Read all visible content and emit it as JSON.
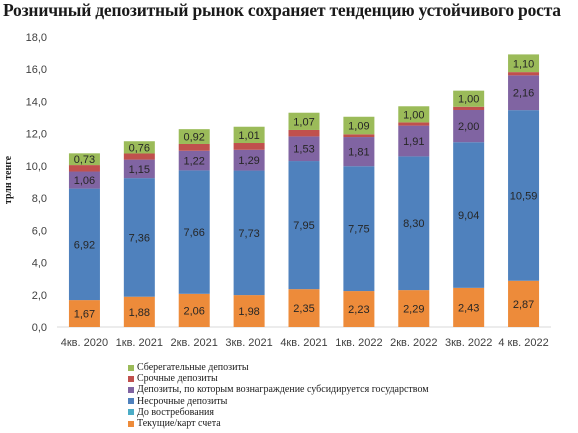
{
  "chart_data": {
    "type": "bar",
    "stacked": true,
    "title": "Розничный депозитный рынок сохраняет тенденцию устойчивого роста",
    "ylabel": "трлн тенге",
    "xlabel": "",
    "ylim": [
      0,
      18
    ],
    "yticks": [
      "0,0",
      "2,0",
      "4,0",
      "6,0",
      "8,0",
      "10,0",
      "12,0",
      "14,0",
      "16,0",
      "18,0"
    ],
    "grid": false,
    "legend_position": "bottom",
    "categories": [
      "4кв. 2020",
      "1кв. 2021",
      "2кв. 2021",
      "3кв. 2021",
      "4кв. 2021",
      "1кв. 2022",
      "2кв. 2022",
      "3кв. 2022",
      "4 кв. 2022"
    ],
    "series": [
      {
        "name": "Текущие/карт счета",
        "color": "#ed8b3a",
        "values": [
          1.67,
          1.88,
          2.06,
          1.98,
          2.35,
          2.23,
          2.29,
          2.43,
          2.87
        ],
        "labels": [
          "1,67",
          "1,88",
          "2,06",
          "1,98",
          "2,35",
          "2,23",
          "2,29",
          "2,43",
          "2,87"
        ]
      },
      {
        "name": "До востребования",
        "color": "#4bacc6",
        "values": [
          0,
          0,
          0,
          0,
          0,
          0,
          0,
          0,
          0
        ],
        "labels": []
      },
      {
        "name": "Несрочные депозиты",
        "color": "#4f81bd",
        "values": [
          6.92,
          7.36,
          7.66,
          7.73,
          7.95,
          7.75,
          8.3,
          9.04,
          10.59
        ],
        "labels": [
          "6,92",
          "7,36",
          "7,66",
          "7,73",
          "7,95",
          "7,75",
          "8,30",
          "9,04",
          "10,59"
        ]
      },
      {
        "name": "Депозиты, по которым  вознаграждение субсидируется государством",
        "color": "#8064a2",
        "values": [
          1.06,
          1.15,
          1.22,
          1.29,
          1.53,
          1.81,
          1.91,
          2.0,
          2.16
        ],
        "labels": [
          "1,06",
          "1,15",
          "1,22",
          "1,29",
          "1,53",
          "1,81",
          "1,91",
          "2,00",
          "2,16"
        ]
      },
      {
        "name": "Срочные депозиты",
        "color": "#c0504d",
        "values": [
          0.4,
          0.38,
          0.42,
          0.42,
          0.4,
          0.17,
          0.2,
          0.2,
          0.2
        ],
        "labels": []
      },
      {
        "name": "Сберегательные депозиты",
        "color": "#9bbb59",
        "values": [
          0.73,
          0.76,
          0.92,
          1.01,
          1.07,
          1.09,
          1.0,
          1.0,
          1.1
        ],
        "labels": [
          "0,73",
          "0,76",
          "0,92",
          "1,01",
          "1,07",
          "1,09",
          "1,00",
          "1,00",
          "1,10"
        ]
      }
    ],
    "legend_order": [
      "Сберегательные депозиты",
      "Срочные депозиты",
      "Депозиты, по которым  вознаграждение субсидируется государством",
      "Несрочные депозиты",
      "До востребования",
      "Текущие/карт счета"
    ]
  }
}
